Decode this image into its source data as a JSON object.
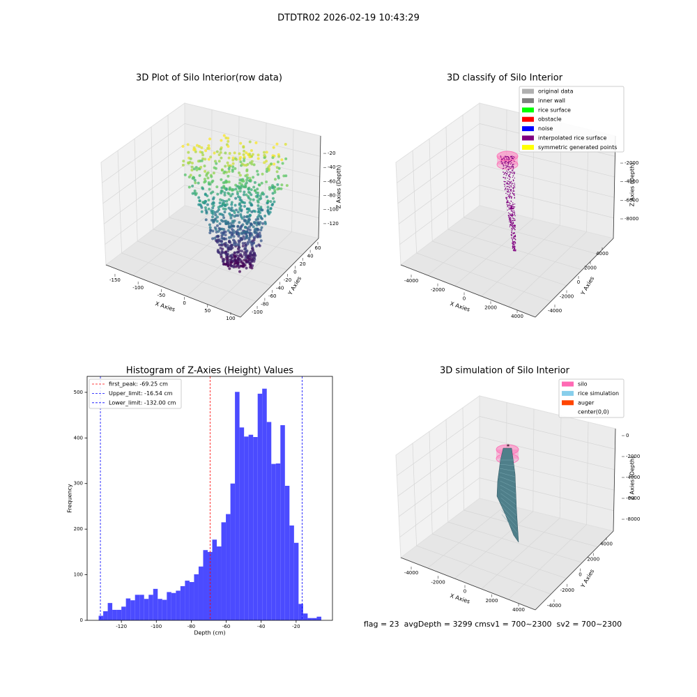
{
  "title": "DTDTR02 2026-02-19 10:43:29",
  "footer": "flag = 23  avgDepth = 3299 cmsv1 = 700~2300  sv2 = 700~2300",
  "chart_data": [
    {
      "type": "scatter3d",
      "title": "3D Plot of Silo Interior(row data)",
      "xlabel": "X Axies",
      "ylabel": "Y Axies",
      "zlabel": "Z Axies (Depth)",
      "xlim": [
        -165,
        110
      ],
      "ylim": [
        -110,
        70
      ],
      "zlim": [
        -135,
        -10
      ],
      "xticks": [
        -150,
        -100,
        -50,
        0,
        50,
        100
      ],
      "yticks": [
        -100,
        -80,
        -60,
        -40,
        -20,
        0,
        20,
        40,
        60
      ],
      "zticks": [
        -120,
        -100,
        -80,
        -60,
        -40,
        -20
      ]
    },
    {
      "type": "scatter3d",
      "title": "3D classify of Silo Interior",
      "xlabel": "X Axies",
      "ylabel": "Y Axies",
      "zlabel": "Z Axies (Depth)",
      "xlim": [
        -4800,
        4800
      ],
      "ylim": [
        -4800,
        4800
      ],
      "zlim": [
        -9500,
        500
      ],
      "xticks": [
        -4000,
        -2000,
        0,
        2000,
        4000
      ],
      "yticks": [
        -4000,
        -2000,
        0,
        2000,
        4000
      ],
      "zticks": [
        -8000,
        -6000,
        -4000,
        -2000
      ],
      "legend": [
        {
          "name": "original data",
          "color": "#b0b0b0"
        },
        {
          "name": "inner wall",
          "color": "#808080"
        },
        {
          "name": "rice surface",
          "color": "#00ff00"
        },
        {
          "name": "obstacle",
          "color": "#ff0000"
        },
        {
          "name": "noise",
          "color": "#0000ff"
        },
        {
          "name": "interpolated rice surface",
          "color": "#800080"
        },
        {
          "name": "symmetric generated points",
          "color": "#ffff00"
        }
      ]
    },
    {
      "type": "histogram",
      "title": "Histogram of Z-Axies (Height) Values",
      "xlabel": "Depth (cm)",
      "ylabel": "Frequency",
      "color": "#4b4bff",
      "xlim": [
        -139.6,
        0.8
      ],
      "ylim": [
        0,
        535
      ],
      "xticks": [
        -120,
        -100,
        -80,
        -60,
        -40,
        -20
      ],
      "yticks": [
        0,
        100,
        200,
        300,
        400,
        500
      ],
      "bins": [
        -133.0,
        -130.4,
        -127.8,
        -125.2,
        -122.6,
        -120.0,
        -117.4,
        -114.8,
        -112.2,
        -109.6,
        -107.0,
        -104.4,
        -101.8,
        -99.2,
        -96.6,
        -94.0,
        -91.4,
        -88.8,
        -86.2,
        -83.6,
        -81.0,
        -78.4,
        -75.8,
        -73.2,
        -70.6,
        -68.0,
        -65.4,
        -62.8,
        -60.2,
        -57.6,
        -55.0,
        -52.4,
        -49.8,
        -47.2,
        -44.6,
        -42.0,
        -39.4,
        -36.8,
        -34.2,
        -31.6,
        -29.0,
        -26.4,
        -23.8,
        -21.2,
        -18.6,
        -16.0,
        -13.4,
        -10.8,
        -8.2,
        -5.6
      ],
      "values": [
        10,
        20,
        38,
        23,
        23,
        30,
        48,
        44,
        56,
        56,
        47,
        56,
        69,
        47,
        45,
        62,
        60,
        65,
        75,
        87,
        84,
        101,
        118,
        154,
        150,
        177,
        162,
        215,
        233,
        300,
        501,
        423,
        403,
        407,
        402,
        497,
        508,
        435,
        343,
        344,
        428,
        295,
        208,
        170,
        36,
        15,
        5,
        5,
        8
      ],
      "lines": [
        {
          "name": "first_peak: -69.25 cm",
          "value": -69.25,
          "color": "#ff0000"
        },
        {
          "name": "Upper_limit: -16.54 cm",
          "value": -16.54,
          "color": "#0000ff"
        },
        {
          "name": "Lower_limit: -132.00 cm",
          "value": -132.0,
          "color": "#0000ff"
        }
      ]
    },
    {
      "type": "scatter3d",
      "title": "3D simulation of Silo Interior",
      "xlabel": "X Axies",
      "ylabel": "Y Axies",
      "zlabel": "Z Axies (Depth)",
      "xlim": [
        -4800,
        4800
      ],
      "ylim": [
        -4800,
        4800
      ],
      "zlim": [
        -9500,
        500
      ],
      "xticks": [
        -4000,
        -2000,
        0,
        2000,
        4000
      ],
      "yticks": [
        -4000,
        -2000,
        0,
        2000,
        4000
      ],
      "zticks": [
        -8000,
        -6000,
        -4000,
        -2000,
        0
      ],
      "legend": [
        {
          "name": "silo",
          "color": "#ff69b4"
        },
        {
          "name": "rice simulation",
          "color": "#87ceeb"
        },
        {
          "name": "auger",
          "color": "#ff4500"
        },
        {
          "name": "center(0,0)",
          "color": "#ffffff"
        }
      ]
    }
  ]
}
